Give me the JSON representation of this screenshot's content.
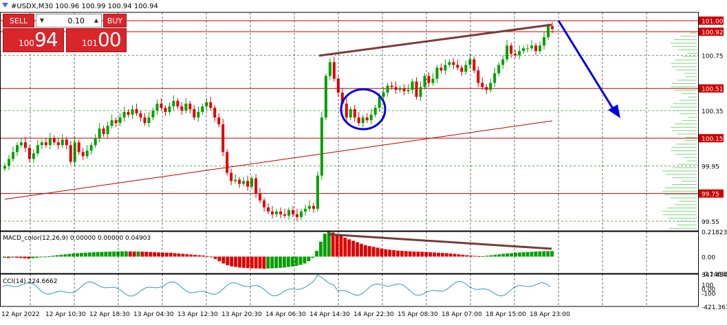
{
  "header": {
    "icon": "chart-triangle-icon",
    "title": "#USDX,M30  100.96 100.99 100.94 100.94"
  },
  "trade_panel": {
    "sell_label": "SELL",
    "buy_label": "BUY",
    "lot_value": "0.10",
    "sell_price_small": "100",
    "sell_price_big": "94",
    "buy_price_small": "101",
    "buy_price_big": "00",
    "color": "#d8262b"
  },
  "chart_data": [
    {
      "type": "candlestick",
      "title": "#USDX,M30",
      "ylim": [
        99.48,
        101.06
      ],
      "y_ticks": [
        "101.00",
        "100.92",
        "100.75",
        "100.51",
        "100.35",
        "100.15",
        "99.95",
        "99.75",
        "99.55"
      ],
      "highlighted_levels": [
        "101.00",
        "100.92",
        "100.51",
        "100.15",
        "99.75"
      ],
      "x_tick_labels": [
        "12 Apr 2022",
        "12 Apr 10:30",
        "12 Apr 18:30",
        "13 Apr 04:30",
        "13 Apr 12:30",
        "13 Apr 20:30",
        "14 Apr 06:30",
        "14 Apr 14:30",
        "14 Apr 22:30",
        "15 Apr 08:30",
        "18 Apr 07:00",
        "18 Apr 15:00",
        "18 Apr 23:00"
      ],
      "closes": [
        99.95,
        100.0,
        100.05,
        100.1,
        100.12,
        100.08,
        100.0,
        100.04,
        100.1,
        100.12,
        100.1,
        100.15,
        100.12,
        100.1,
        100.14,
        100.1,
        99.98,
        100.12,
        100.05,
        100.02,
        100.06,
        100.1,
        100.15,
        100.22,
        100.18,
        100.24,
        100.28,
        100.26,
        100.3,
        100.34,
        100.32,
        100.36,
        100.33,
        100.3,
        100.26,
        100.3,
        100.35,
        100.4,
        100.37,
        100.34,
        100.38,
        100.42,
        100.38,
        100.35,
        100.4,
        100.36,
        100.3,
        100.34,
        100.38,
        100.41,
        100.37,
        100.3,
        100.25,
        100.05,
        99.9,
        99.84,
        99.85,
        99.82,
        99.84,
        99.8,
        99.86,
        99.75,
        99.7,
        99.65,
        99.62,
        99.6,
        99.62,
        99.6,
        99.59,
        99.63,
        99.6,
        99.58,
        99.62,
        99.64,
        99.66,
        99.64,
        99.88,
        100.3,
        100.6,
        100.7,
        100.58,
        100.48,
        100.4,
        100.3,
        100.36,
        100.3,
        100.26,
        100.3,
        100.28,
        100.32,
        100.37,
        100.45,
        100.48,
        100.53,
        100.52,
        100.5,
        100.51,
        100.49,
        100.5,
        100.56,
        100.45,
        100.52,
        100.6,
        100.55,
        100.58,
        100.66,
        100.64,
        100.68,
        100.7,
        100.68,
        100.66,
        100.63,
        100.68,
        100.72,
        100.64,
        100.55,
        100.52,
        100.5,
        100.55,
        100.62,
        100.68,
        100.72,
        100.82,
        100.76,
        100.75,
        100.78,
        100.8,
        100.8,
        100.82,
        100.78,
        100.82,
        100.88,
        100.96,
        100.94
      ],
      "annotations": [
        "resistance-trendline",
        "support-circle",
        "bearish-arrow",
        "moving-average"
      ]
    },
    {
      "type": "bar",
      "title": "MACD_color(12,26,9) 0.00000 0.00000 0.04903",
      "y_tick_labels": [
        "0.21823",
        "0.00",
        "-0.14685"
      ],
      "ylim": [
        -0.14685,
        0.21823
      ],
      "values": [
        -0.01,
        -0.012,
        -0.008,
        -0.01,
        -0.012,
        -0.015,
        -0.018,
        -0.014,
        -0.01,
        -0.006,
        -0.002,
        0.003,
        0.008,
        0.012,
        0.016,
        0.02,
        0.024,
        0.027,
        0.03,
        0.032,
        0.034,
        0.036,
        0.038,
        0.04,
        0.041,
        0.042,
        0.043,
        0.044,
        0.045,
        0.046,
        0.046,
        0.045,
        0.044,
        0.044,
        0.043,
        0.042,
        0.04,
        0.038,
        0.036,
        0.035,
        0.034,
        0.033,
        0.03,
        0.027,
        0.024,
        0.021,
        0.018,
        0.015,
        0.012,
        0.01,
        0.005,
        -0.005,
        -0.02,
        -0.04,
        -0.06,
        -0.075,
        -0.085,
        -0.09,
        -0.095,
        -0.098,
        -0.1,
        -0.102,
        -0.103,
        -0.104,
        -0.105,
        -0.104,
        -0.102,
        -0.1,
        -0.098,
        -0.095,
        -0.09,
        -0.085,
        -0.08,
        -0.072,
        -0.06,
        -0.04,
        -0.01,
        0.05,
        0.13,
        0.2,
        0.22,
        0.21,
        0.195,
        0.18,
        0.165,
        0.15,
        0.138,
        0.125,
        0.112,
        0.1,
        0.092,
        0.085,
        0.078,
        0.07,
        0.064,
        0.06,
        0.056,
        0.052,
        0.05,
        0.048,
        0.046,
        0.044,
        0.043,
        0.042,
        0.04,
        0.038,
        0.036,
        0.034,
        0.032,
        0.03,
        0.027,
        0.024,
        0.02,
        0.016,
        0.012,
        0.01,
        0.006,
        0.004,
        0.004,
        0.008,
        0.012,
        0.016,
        0.02,
        0.024,
        0.028,
        0.03,
        0.034,
        0.036,
        0.038,
        0.04,
        0.042,
        0.044,
        0.046,
        0.047,
        0.048,
        0.049
      ]
    },
    {
      "type": "line",
      "title": "CCI(14) 224.6662",
      "y_tick_labels": [
        "347.4546",
        "100",
        "0.00",
        "-100",
        "-421.3637"
      ],
      "ylim": [
        -421.3637,
        347.4546
      ]
    }
  ],
  "colors": {
    "bull": "#00a000",
    "bear": "#e00000",
    "trendline": "#7a3b3a",
    "circle": "#0000e0",
    "ma": "#c00000",
    "cci": "#2a9db5",
    "level": "#d00000"
  }
}
